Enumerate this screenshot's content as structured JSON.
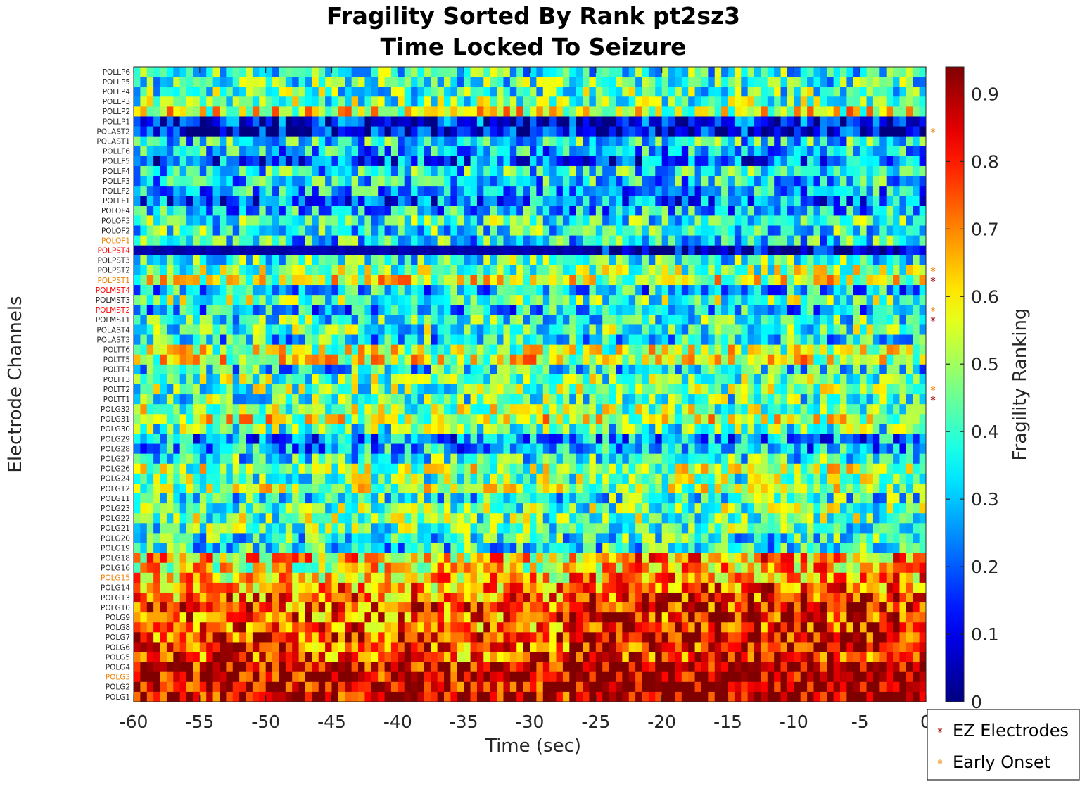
{
  "chart_data": {
    "type": "heatmap",
    "title": [
      "Fragility Sorted By Rank pt2sz3",
      "Time Locked To Seizure"
    ],
    "xlabel": "Time (sec)",
    "ylabel": "Electrode Channels",
    "colorbar_label": "Fragility Ranking",
    "colormap": "jet",
    "x_range": [
      -60,
      0
    ],
    "x_ticks": [
      -60,
      -55,
      -50,
      -45,
      -40,
      -35,
      -30,
      -25,
      -20,
      -15,
      -10,
      -5,
      0
    ],
    "x_tick_labels": [
      "-60",
      "-55",
      "-50",
      "-45",
      "-40",
      "-35",
      "-30",
      "-25",
      "-20",
      "-15",
      "-10",
      "-5",
      "0"
    ],
    "color_range": [
      0,
      0.94
    ],
    "colorbar_ticks": [
      0,
      0.1,
      0.2,
      0.3,
      0.4,
      0.5,
      0.6,
      0.7,
      0.8,
      0.9
    ],
    "colorbar_tick_labels": [
      "0",
      "0.1",
      "0.2",
      "0.3",
      "0.4",
      "0.5",
      "0.6",
      "0.7",
      "0.8",
      "0.9"
    ],
    "n_time_windows": 120,
    "channels": [
      "POLLP6",
      "POLLP5",
      "POLLP4",
      "POLLP3",
      "POLLP2",
      "POLLP1",
      "POLAST2",
      "POLAST1",
      "POLLF6",
      "POLLF5",
      "POLLF4",
      "POLLF3",
      "POLLF2",
      "POLLF1",
      "POLOF4",
      "POLOF3",
      "POLOF2",
      "POLOF1",
      "POLPST4",
      "POLPST3",
      "POLPST2",
      "POLPST1",
      "POLMST4",
      "POLMST3",
      "POLMST2",
      "POLMST1",
      "POLAST4",
      "POLAST3",
      "POLTT6",
      "POLTT5",
      "POLTT4",
      "POLTT3",
      "POLTT2",
      "POLTT1",
      "POLG32",
      "POLG31",
      "POLG30",
      "POLG29",
      "POLG28",
      "POLG27",
      "POLG26",
      "POLG24",
      "POLG12",
      "POLG11",
      "POLG23",
      "POLG22",
      "POLG21",
      "POLG20",
      "POLG19",
      "POLG18",
      "POLG16",
      "POLG15",
      "POLG14",
      "POLG13",
      "POLG10",
      "POLG9",
      "POLG8",
      "POLG7",
      "POLG6",
      "POLG5",
      "POLG4",
      "POLG3",
      "POLG2",
      "POLG1"
    ],
    "channel_label_colors": {
      "POLOF1": "#f08000",
      "POLPST4": "#ff0000",
      "POLPST1": "#f08000",
      "POLMST4": "#ff0000",
      "POLMST2": "#ff0000",
      "POLG15": "#f08000",
      "POLG3": "#f08000"
    },
    "approx_mean_fragility": [
      0.38,
      0.4,
      0.42,
      0.44,
      0.56,
      0.12,
      0.08,
      0.35,
      0.3,
      0.2,
      0.35,
      0.33,
      0.3,
      0.22,
      0.3,
      0.4,
      0.38,
      0.35,
      0.04,
      0.4,
      0.48,
      0.55,
      0.3,
      0.45,
      0.3,
      0.4,
      0.42,
      0.35,
      0.52,
      0.56,
      0.35,
      0.45,
      0.45,
      0.42,
      0.48,
      0.55,
      0.42,
      0.25,
      0.28,
      0.38,
      0.5,
      0.45,
      0.5,
      0.38,
      0.45,
      0.45,
      0.42,
      0.38,
      0.36,
      0.62,
      0.58,
      0.62,
      0.68,
      0.72,
      0.76,
      0.74,
      0.74,
      0.78,
      0.76,
      0.74,
      0.86,
      0.86,
      0.86,
      0.86
    ],
    "star_markers": [
      {
        "channel": "POLAST2",
        "type": "Early Onset"
      },
      {
        "channel": "POLPST2",
        "type": "Early Onset"
      },
      {
        "channel": "POLPST1",
        "type": "EZ Electrodes"
      },
      {
        "channel": "POLMST2",
        "type": "Early Onset"
      },
      {
        "channel": "POLMST1",
        "type": "EZ Electrodes"
      },
      {
        "channel": "POLTT2",
        "type": "Early Onset"
      },
      {
        "channel": "POLTT1",
        "type": "EZ Electrodes"
      }
    ],
    "legend": {
      "placement": "bottom-right",
      "entries": [
        {
          "label": "EZ Electrodes",
          "color": "#a00000"
        },
        {
          "label": "Early Onset",
          "color": "#f08000"
        }
      ]
    }
  }
}
